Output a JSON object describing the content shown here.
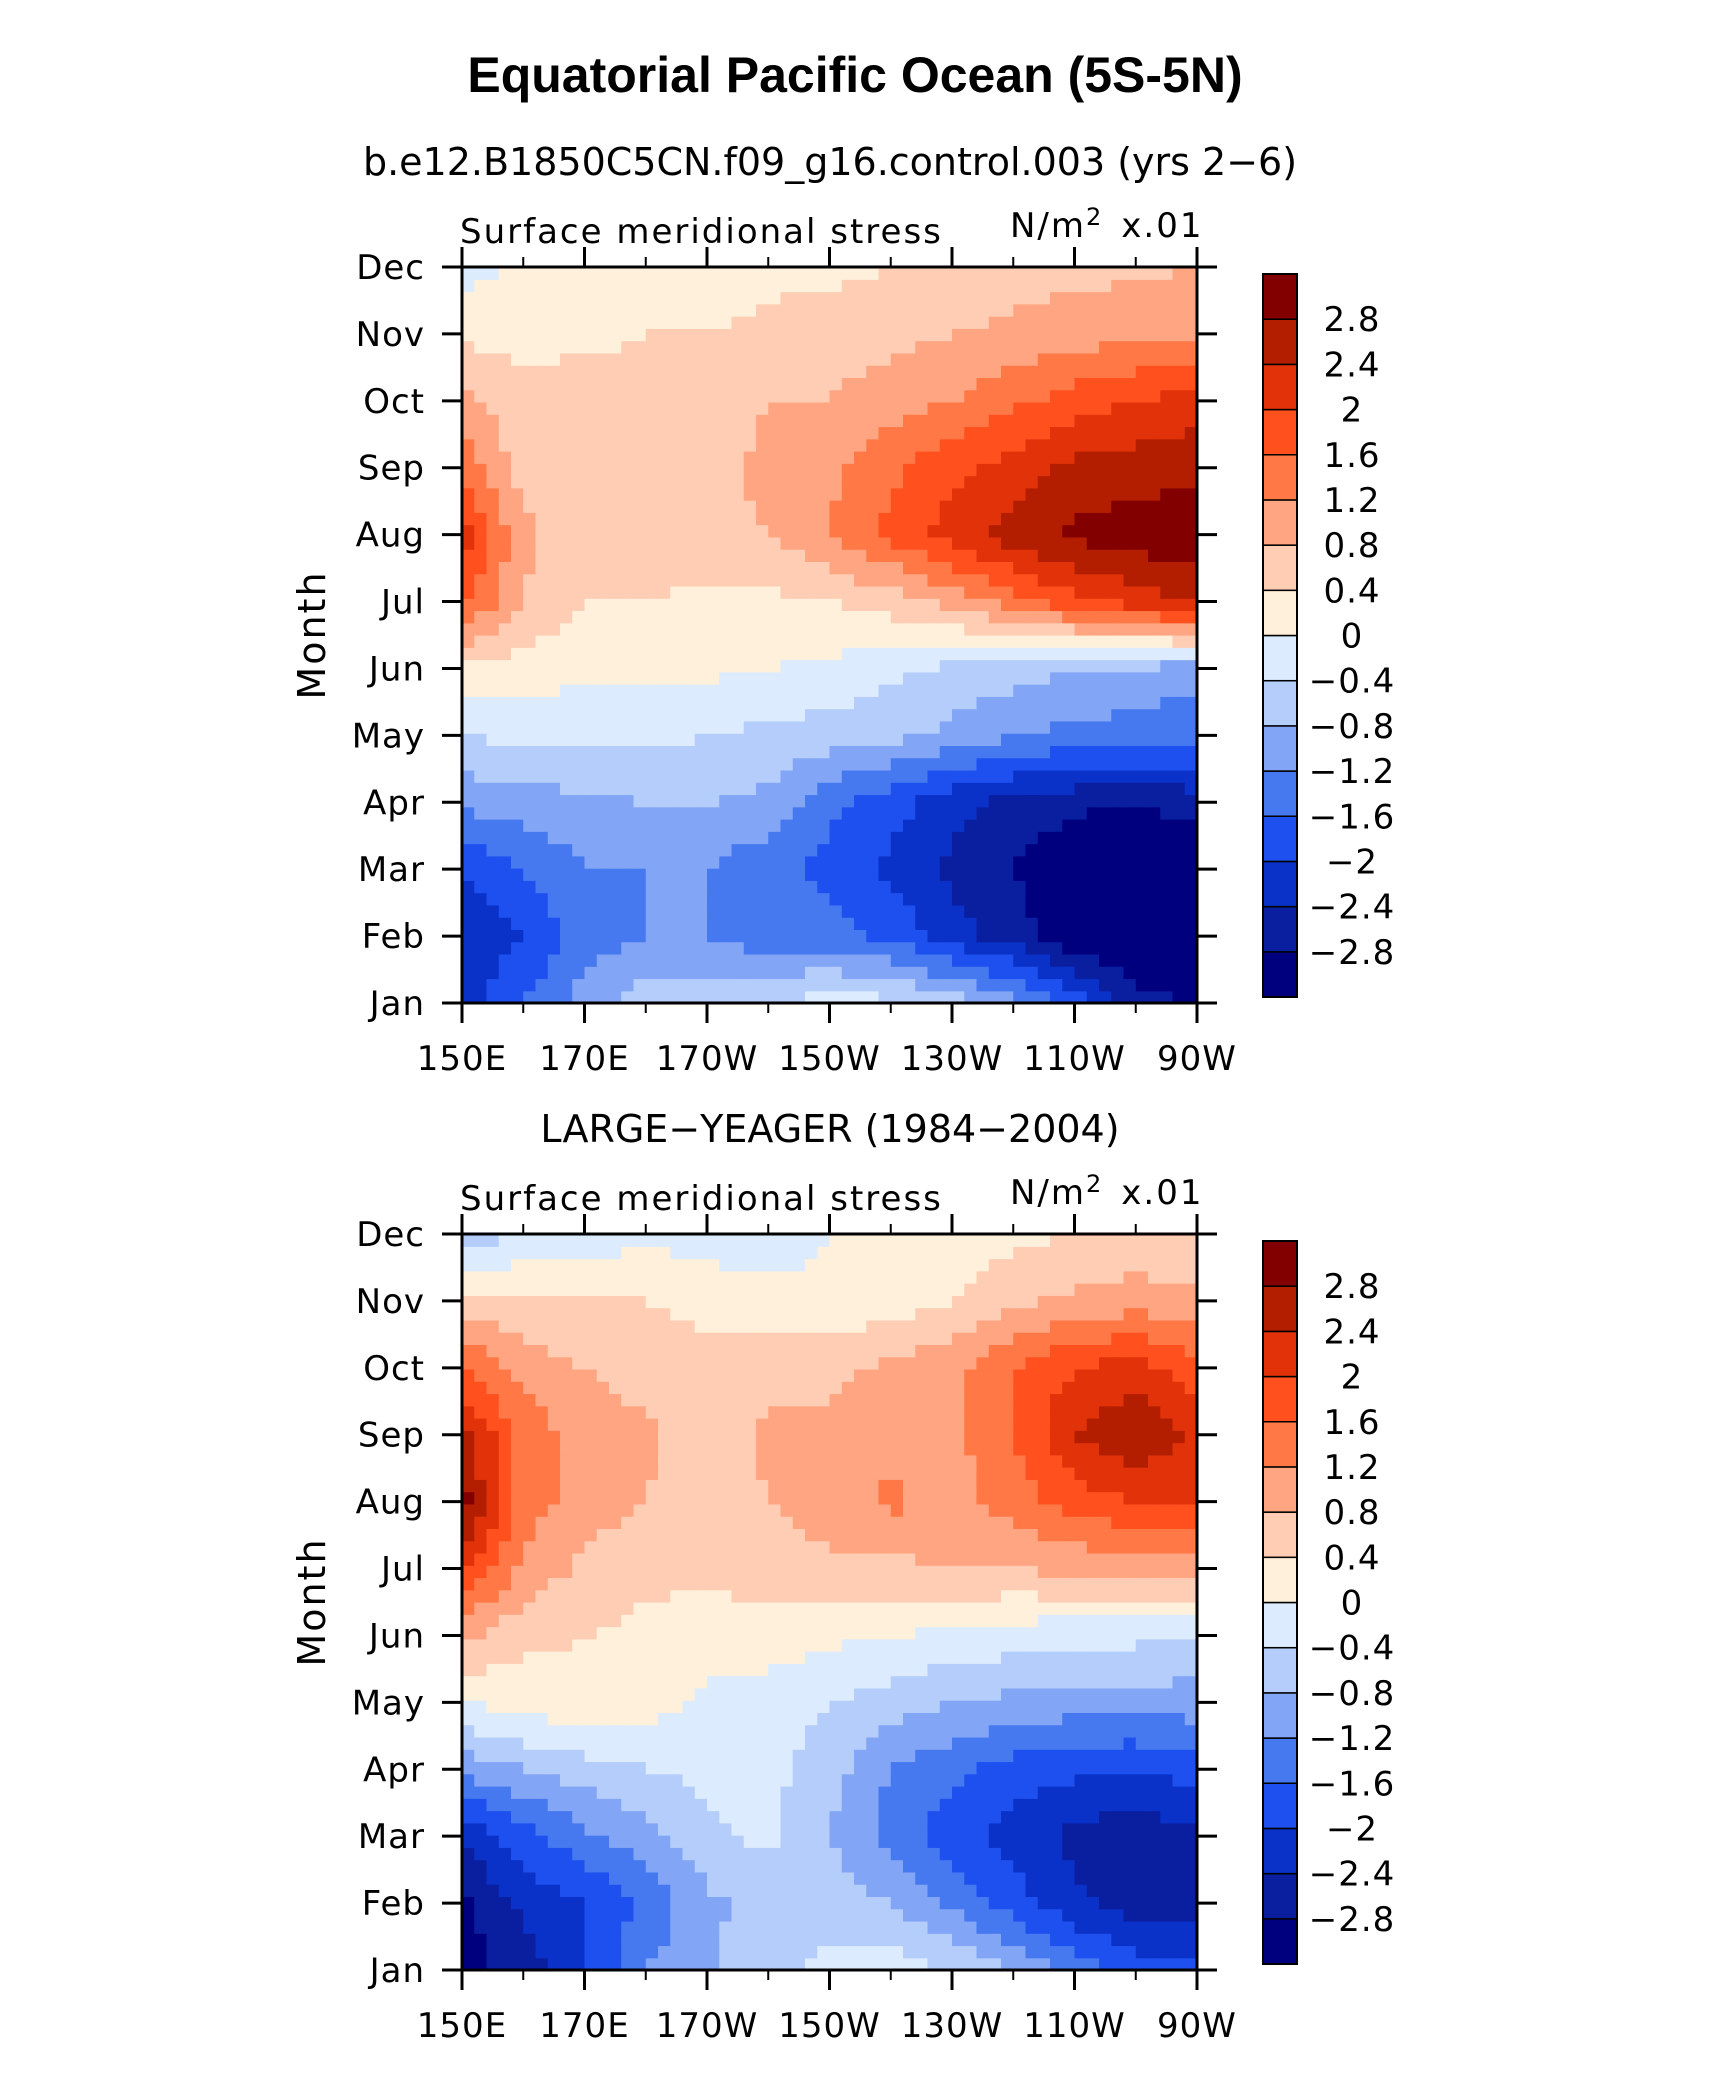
{
  "figure": {
    "title": "Equatorial Pacific Ocean (5S-5N)"
  },
  "chart_data": [
    {
      "type": "heatmap",
      "subtitle": "b.e12.B1850C5CN.f09_g16.control.003 (yrs 2−6)",
      "variable": "Surface meridional stress",
      "units_text": "N/m",
      "units_sup": "2",
      "units_scale": "x.01",
      "ylabel": "Month",
      "xlabel": "",
      "x_ticks": [
        "150E",
        "170E",
        "170W",
        "150W",
        "130W",
        "110W",
        "90W"
      ],
      "x_lon": [
        150,
        160,
        170,
        180,
        190,
        200,
        210,
        220,
        230,
        240,
        250,
        260,
        270
      ],
      "y_ticks": [
        "Jan",
        "Feb",
        "Mar",
        "Apr",
        "May",
        "Jun",
        "Jul",
        "Aug",
        "Sep",
        "Oct",
        "Nov",
        "Dec"
      ],
      "levels": [
        -2.8,
        -2.4,
        -2,
        -1.6,
        -1.2,
        -0.8,
        -0.4,
        0,
        0.4,
        0.8,
        1.2,
        1.6,
        2,
        2.4,
        2.8
      ],
      "level_labels": [
        "2.8",
        "2.4",
        "2",
        "1.6",
        "1.2",
        "0.8",
        "0.4",
        "0",
        "−0.4",
        "−0.8",
        "−1.2",
        "−1.6",
        "−2",
        "−2.4",
        "−2.8"
      ],
      "colors": [
        "#00007f",
        "#0a1ea0",
        "#0a32c8",
        "#1e50f0",
        "#4678f0",
        "#82a5f5",
        "#b4cdfa",
        "#dcebfd",
        "#fff0dc",
        "#ffcdb4",
        "#ffa582",
        "#ff7846",
        "#ff501e",
        "#e1320a",
        "#b41e00",
        "#820000"
      ],
      "values": [
        [
          -2.2,
          -1.6,
          -1.0,
          -0.6,
          -0.5,
          -0.4,
          -0.2,
          -0.3,
          -0.6,
          -1.0,
          -1.8,
          -2.6,
          -2.9
        ],
        [
          -2.3,
          -2.0,
          -1.4,
          -1.2,
          -1.2,
          -1.5,
          -1.4,
          -1.7,
          -2.2,
          -2.6,
          -3.1,
          -3.3,
          -3.2
        ],
        [
          -2.0,
          -1.6,
          -1.2,
          -1.2,
          -1.2,
          -1.5,
          -1.7,
          -2.1,
          -2.5,
          -2.8,
          -3.2,
          -3.3,
          -3.2
        ],
        [
          -1.1,
          -1.0,
          -0.9,
          -0.8,
          -0.8,
          -0.9,
          -1.5,
          -1.8,
          -2.3,
          -2.5,
          -2.7,
          -2.8,
          -2.6
        ],
        [
          -0.4,
          -0.3,
          -0.3,
          -0.3,
          -0.4,
          -0.5,
          -0.6,
          -0.7,
          -0.9,
          -1.2,
          -1.3,
          -1.4,
          -1.5
        ],
        [
          0.3,
          0.2,
          0.1,
          0.1,
          0.1,
          0.0,
          -0.1,
          -0.3,
          -0.5,
          -0.6,
          -0.8,
          -0.9,
          -1.0
        ],
        [
          1.7,
          0.8,
          0.4,
          0.4,
          0.3,
          0.3,
          0.4,
          0.6,
          0.9,
          1.4,
          1.9,
          2.2,
          2.5
        ],
        [
          2.2,
          0.9,
          0.6,
          0.6,
          0.7,
          0.8,
          1.2,
          1.7,
          2.2,
          2.6,
          2.9,
          3.0,
          3.1
        ],
        [
          1.5,
          0.6,
          0.5,
          0.6,
          0.7,
          0.9,
          1.1,
          1.5,
          1.9,
          2.2,
          2.5,
          2.6,
          2.7
        ],
        [
          0.9,
          0.5,
          0.6,
          0.5,
          0.5,
          0.8,
          0.8,
          1.0,
          1.2,
          1.5,
          1.8,
          2.0,
          2.2
        ],
        [
          0.3,
          0.3,
          0.3,
          0.4,
          0.4,
          0.5,
          0.6,
          0.7,
          0.8,
          0.9,
          1.0,
          1.1,
          1.2
        ],
        [
          -0.2,
          0.1,
          0.2,
          0.2,
          0.2,
          0.3,
          0.3,
          0.4,
          0.5,
          0.6,
          0.7,
          0.7,
          0.8
        ]
      ]
    },
    {
      "type": "heatmap",
      "subtitle": "LARGE−YEAGER (1984−2004)",
      "variable": "Surface meridional stress",
      "units_text": "N/m",
      "units_sup": "2",
      "units_scale": "x.01",
      "ylabel": "Month",
      "xlabel": "",
      "x_ticks": [
        "150E",
        "170E",
        "170W",
        "150W",
        "130W",
        "110W",
        "90W"
      ],
      "x_lon": [
        150,
        160,
        170,
        180,
        190,
        200,
        210,
        220,
        230,
        240,
        250,
        260,
        270
      ],
      "y_ticks": [
        "Jan",
        "Feb",
        "Mar",
        "Apr",
        "May",
        "Jun",
        "Jul",
        "Aug",
        "Sep",
        "Oct",
        "Nov",
        "Dec"
      ],
      "levels": [
        -2.8,
        -2.4,
        -2,
        -1.6,
        -1.2,
        -0.8,
        -0.4,
        0,
        0.4,
        0.8,
        1.2,
        1.6,
        2,
        2.4,
        2.8
      ],
      "level_labels": [
        "2.8",
        "2.4",
        "2",
        "1.6",
        "1.2",
        "0.8",
        "0.4",
        "0",
        "−0.4",
        "−0.8",
        "−1.2",
        "−1.6",
        "−2",
        "−2.4",
        "−2.8"
      ],
      "colors": [
        "#00007f",
        "#0a1ea0",
        "#0a32c8",
        "#1e50f0",
        "#4678f0",
        "#82a5f5",
        "#b4cdfa",
        "#dcebfd",
        "#fff0dc",
        "#ffcdb4",
        "#ffa582",
        "#ff7846",
        "#ff501e",
        "#e1320a",
        "#b41e00",
        "#820000"
      ],
      "values": [
        [
          -3.0,
          -2.6,
          -2.0,
          -1.2,
          -0.9,
          -0.5,
          -0.3,
          -0.2,
          -0.4,
          -0.8,
          -1.4,
          -1.8,
          -1.8
        ],
        [
          -2.9,
          -2.3,
          -2.0,
          -1.5,
          -0.9,
          -0.6,
          -0.6,
          -0.8,
          -1.3,
          -1.8,
          -2.3,
          -2.6,
          -2.6
        ],
        [
          -2.3,
          -1.8,
          -1.3,
          -1.0,
          -0.5,
          -0.3,
          -0.8,
          -1.4,
          -1.8,
          -2.2,
          -2.5,
          -2.7,
          -2.5
        ],
        [
          -1.1,
          -0.8,
          -0.6,
          -0.4,
          -0.3,
          -0.3,
          -0.6,
          -1.2,
          -1.5,
          -1.8,
          -1.9,
          -2.0,
          -1.8
        ],
        [
          0.0,
          0.2,
          0.3,
          0.2,
          -0.1,
          -0.2,
          -0.4,
          -0.6,
          -0.8,
          -0.9,
          -1.0,
          -1.0,
          -1.0
        ],
        [
          0.9,
          0.5,
          0.4,
          0.3,
          0.2,
          0.2,
          0.1,
          0.0,
          -0.1,
          -0.2,
          -0.3,
          -0.3,
          -0.4
        ],
        [
          2.1,
          1.1,
          0.7,
          0.5,
          0.5,
          0.6,
          0.7,
          0.7,
          0.8,
          0.8,
          0.9,
          0.9,
          1.0
        ],
        [
          3.0,
          1.4,
          1.0,
          0.8,
          0.6,
          0.8,
          1.0,
          1.3,
          1.0,
          1.4,
          1.8,
          2.0,
          2.0
        ],
        [
          2.5,
          1.5,
          1.0,
          0.9,
          0.5,
          0.9,
          0.9,
          1.0,
          1.1,
          1.6,
          2.4,
          2.8,
          2.3
        ],
        [
          1.7,
          1.0,
          0.8,
          0.6,
          0.5,
          0.6,
          0.7,
          0.9,
          1.1,
          1.6,
          2.0,
          2.2,
          1.8
        ],
        [
          0.6,
          0.5,
          0.5,
          0.4,
          0.3,
          0.2,
          0.1,
          0.2,
          0.4,
          0.7,
          0.9,
          1.0,
          0.9
        ],
        [
          -0.6,
          -0.4,
          -0.3,
          -0.1,
          -0.2,
          -0.3,
          0.0,
          0.1,
          0.1,
          0.3,
          0.4,
          0.5,
          0.4
        ]
      ]
    }
  ]
}
